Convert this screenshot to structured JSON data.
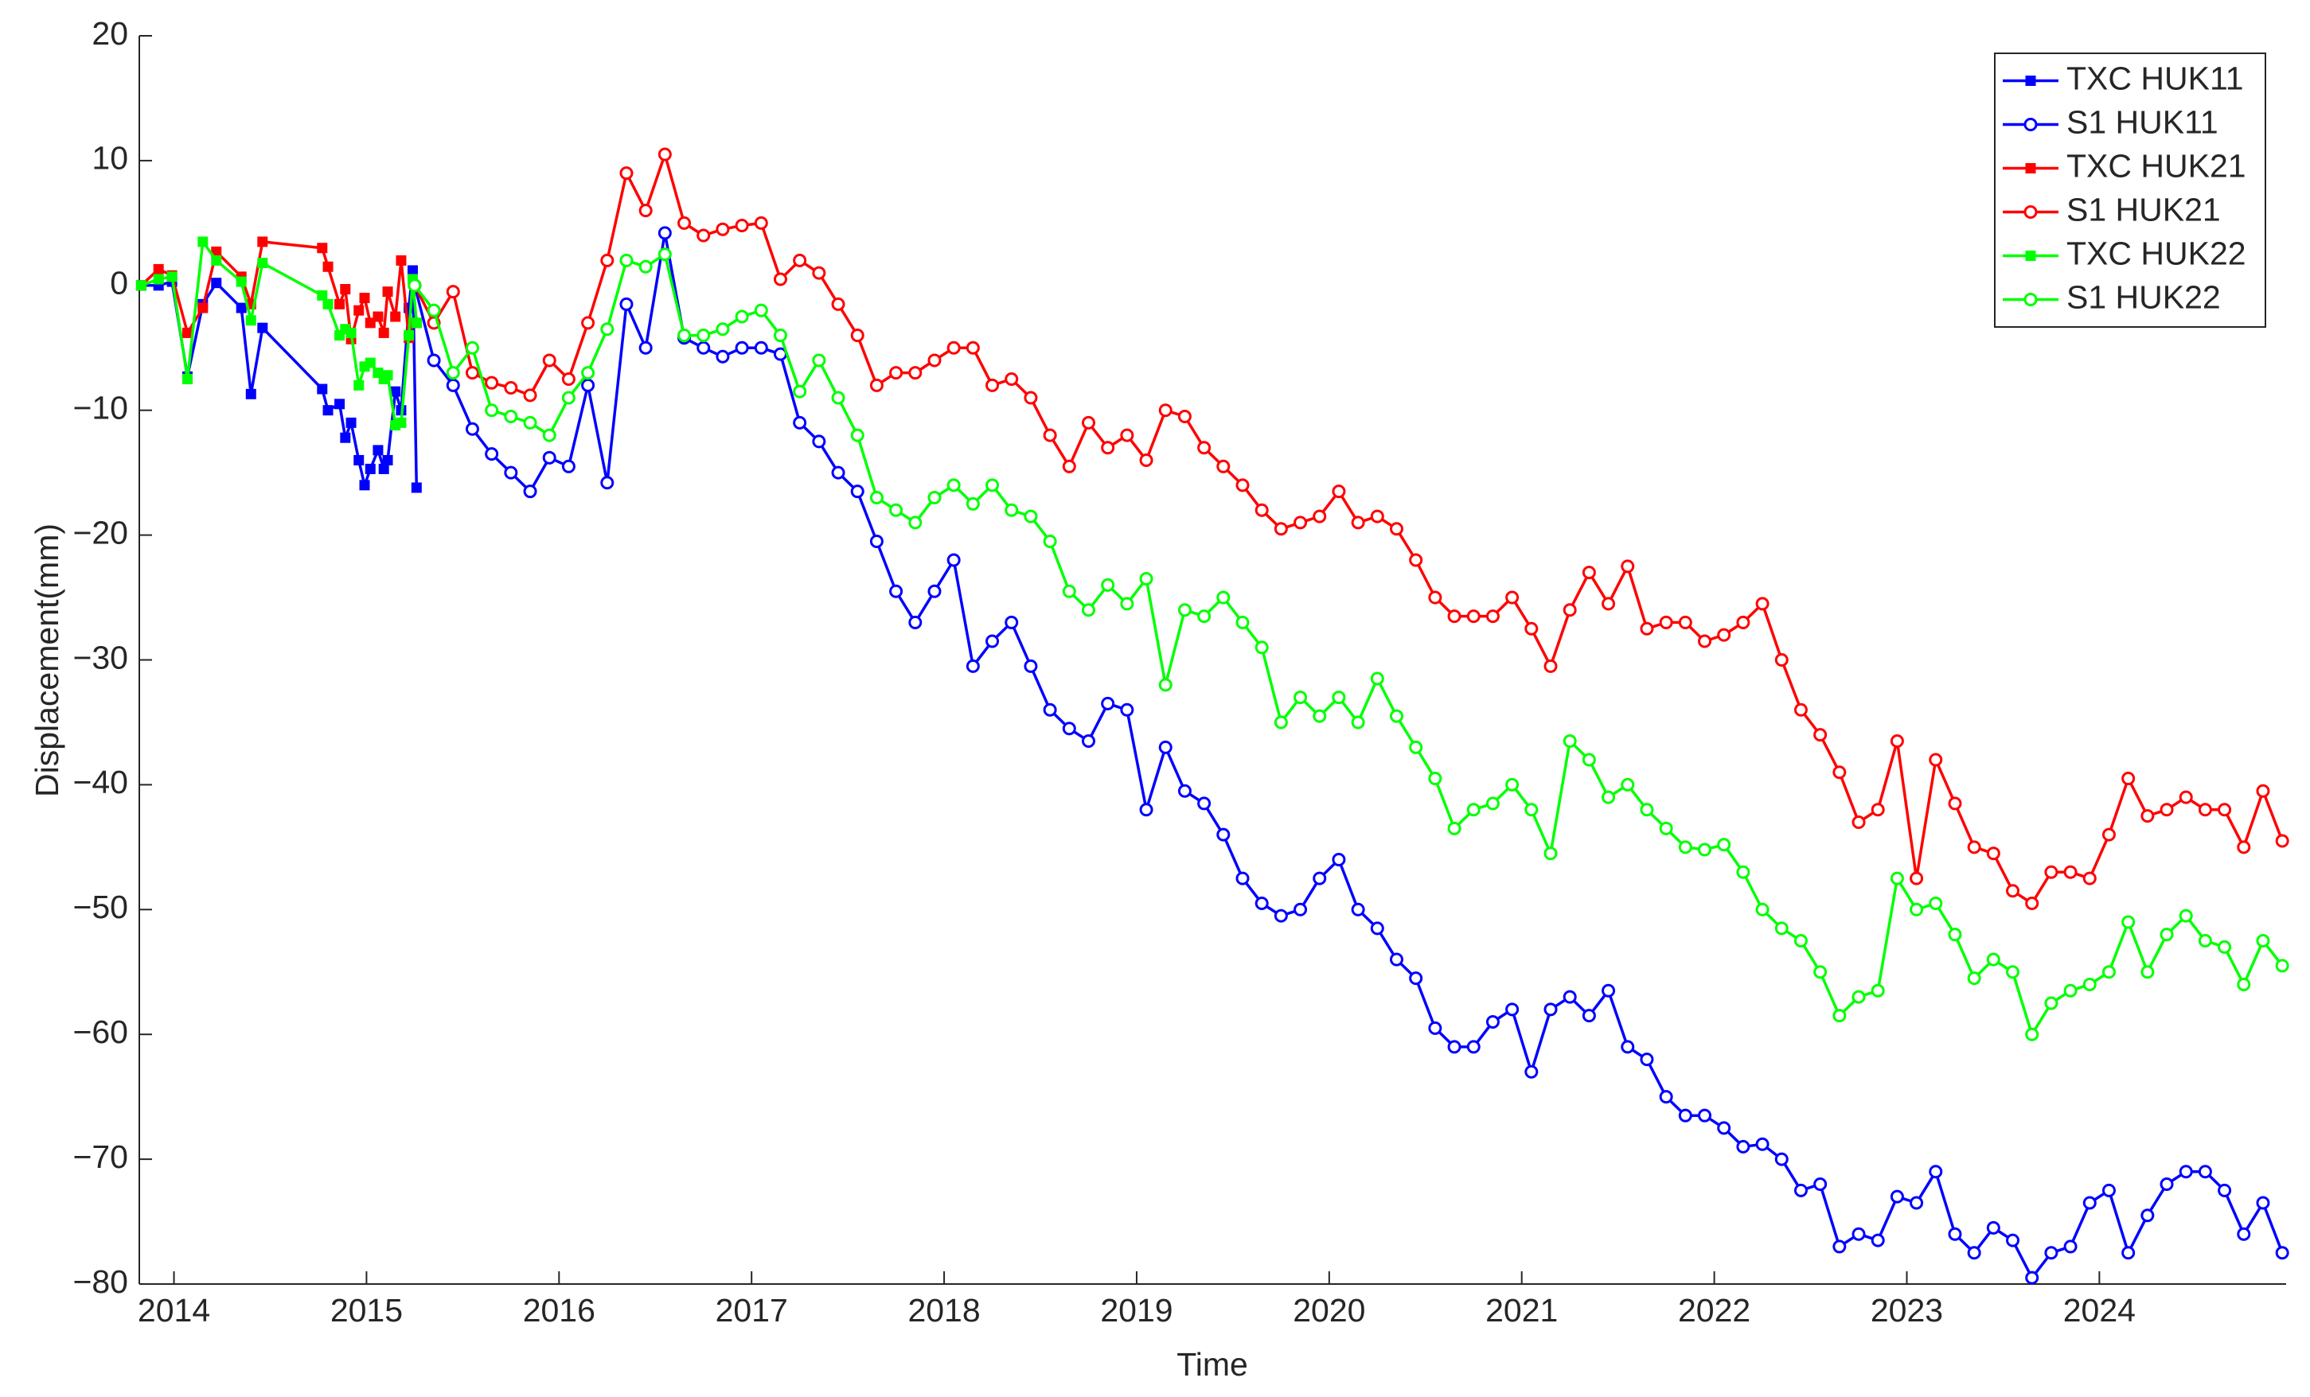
{
  "chart_data": {
    "type": "line",
    "x_label": "Time",
    "y_label": "Displacement(mm)",
    "xlim": [
      2013.82,
      2024.97
    ],
    "xticks": [
      2014,
      2015,
      2016,
      2017,
      2018,
      2019,
      2020,
      2021,
      2022,
      2023,
      2024
    ],
    "ylim": [
      -80,
      20
    ],
    "yticks": [
      {
        "value": -80,
        "label": "−80"
      },
      {
        "value": -70,
        "label": "−70"
      },
      {
        "value": -60,
        "label": "−60"
      },
      {
        "value": -50,
        "label": "−50"
      },
      {
        "value": -40,
        "label": "−40"
      },
      {
        "value": -30,
        "label": "−30"
      },
      {
        "value": -20,
        "label": "−20"
      },
      {
        "value": -10,
        "label": "−10"
      },
      0,
      10,
      20
    ],
    "legend": "upper right",
    "series": [
      {
        "name": "TXC HUK11",
        "color": "#0000ff",
        "marker": "square",
        "x": [
          2013.83,
          2013.92,
          2013.99,
          2014.07,
          2014.15,
          2014.22,
          2014.35,
          2014.4,
          2014.46,
          2014.77,
          2014.8,
          2014.86,
          2014.89,
          2014.92,
          2014.96,
          2014.99,
          2015.02,
          2015.06,
          2015.09,
          2015.11,
          2015.15,
          2015.18,
          2015.22,
          2015.24,
          2015.26
        ],
        "values": [
          0,
          0,
          0.3,
          -7.3,
          -1.5,
          0.2,
          -1.8,
          -8.7,
          -3.4,
          -8.3,
          -10,
          -9.5,
          -12.2,
          -11,
          -14,
          -16,
          -14.7,
          -13.2,
          -14.7,
          -14,
          -8.5,
          -10,
          -1.8,
          1.2,
          -16.2
        ]
      },
      {
        "name": "S1 HUK11",
        "color": "#0000ff",
        "marker": "circle",
        "x": [
          2015.25,
          2015.35,
          2015.45,
          2015.55,
          2015.65,
          2015.75,
          2015.85,
          2015.95,
          2016.05,
          2016.15,
          2016.25,
          2016.35,
          2016.45,
          2016.55,
          2016.65,
          2016.75,
          2016.85,
          2016.95,
          2017.05,
          2017.15,
          2017.25,
          2017.35,
          2017.45,
          2017.55,
          2017.65,
          2017.75,
          2017.85,
          2017.95,
          2018.05,
          2018.15,
          2018.25,
          2018.35,
          2018.45,
          2018.55,
          2018.65,
          2018.75,
          2018.85,
          2018.95,
          2019.05,
          2019.15,
          2019.25,
          2019.35,
          2019.45,
          2019.55,
          2019.65,
          2019.75,
          2019.85,
          2019.95,
          2020.05,
          2020.15,
          2020.25,
          2020.35,
          2020.45,
          2020.55,
          2020.65,
          2020.75,
          2020.85,
          2020.95,
          2021.05,
          2021.15,
          2021.25,
          2021.35,
          2021.45,
          2021.55,
          2021.65,
          2021.75,
          2021.85,
          2021.95,
          2022.05,
          2022.15,
          2022.25,
          2022.35,
          2022.45,
          2022.55,
          2022.65,
          2022.75,
          2022.85,
          2022.95,
          2023.05,
          2023.15,
          2023.25,
          2023.35,
          2023.45,
          2023.55,
          2023.65,
          2023.75,
          2023.85,
          2023.95,
          2024.05,
          2024.15,
          2024.25,
          2024.35,
          2024.45,
          2024.55,
          2024.65,
          2024.75,
          2024.85,
          2024.95
        ],
        "values": [
          0,
          -6,
          -8,
          -11.5,
          -13.5,
          -15,
          -16.5,
          -13.8,
          -14.5,
          -8,
          -15.8,
          -1.5,
          -5,
          4.2,
          -4.2,
          -5,
          -5.7,
          -5,
          -5,
          -5.5,
          -11,
          -12.5,
          -15,
          -16.5,
          -20.5,
          -24.5,
          -27,
          -24.5,
          -22,
          -30.5,
          -28.5,
          -27,
          -30.5,
          -34,
          -35.5,
          -36.5,
          -33.5,
          -34,
          -42,
          -37,
          -40.5,
          -41.5,
          -44,
          -47.5,
          -49.5,
          -50.5,
          -50,
          -47.5,
          -46,
          -50,
          -51.5,
          -54,
          -55.5,
          -59.5,
          -61,
          -61,
          -59,
          -58,
          -63,
          -58,
          -57,
          -58.5,
          -56.5,
          -61,
          -62,
          -65,
          -66.5,
          -66.5,
          -67.5,
          -69,
          -68.8,
          -70,
          -72.5,
          -72,
          -77,
          -76,
          -76.5,
          -73,
          -73.5,
          -71,
          -76,
          -77.5,
          -75.5,
          -76.5,
          -79.5,
          -77.5,
          -77,
          -73.5,
          -72.5,
          -77.5,
          -74.5,
          -72,
          -71,
          -71,
          -72.5,
          -76,
          -73.5,
          -77.5
        ]
      },
      {
        "name": "TXC HUK21",
        "color": "#ff0000",
        "marker": "square",
        "x": [
          2013.83,
          2013.92,
          2013.99,
          2014.07,
          2014.15,
          2014.22,
          2014.35,
          2014.4,
          2014.46,
          2014.77,
          2014.8,
          2014.86,
          2014.89,
          2014.92,
          2014.96,
          2014.99,
          2015.02,
          2015.06,
          2015.09,
          2015.11,
          2015.15,
          2015.18,
          2015.22,
          2015.24,
          2015.26
        ],
        "values": [
          0,
          1.3,
          0.8,
          -3.8,
          -1.8,
          2.7,
          0.7,
          -1.5,
          3.5,
          3,
          1.5,
          -1.5,
          -0.3,
          -4.3,
          -2,
          -1,
          -3,
          -2.5,
          -3.8,
          -0.5,
          -2.5,
          2,
          -4.2,
          -3,
          -3
        ]
      },
      {
        "name": "S1 HUK21",
        "color": "#ff0000",
        "marker": "circle",
        "x": [
          2015.25,
          2015.35,
          2015.45,
          2015.55,
          2015.65,
          2015.75,
          2015.85,
          2015.95,
          2016.05,
          2016.15,
          2016.25,
          2016.35,
          2016.45,
          2016.55,
          2016.65,
          2016.75,
          2016.85,
          2016.95,
          2017.05,
          2017.15,
          2017.25,
          2017.35,
          2017.45,
          2017.55,
          2017.65,
          2017.75,
          2017.85,
          2017.95,
          2018.05,
          2018.15,
          2018.25,
          2018.35,
          2018.45,
          2018.55,
          2018.65,
          2018.75,
          2018.85,
          2018.95,
          2019.05,
          2019.15,
          2019.25,
          2019.35,
          2019.45,
          2019.55,
          2019.65,
          2019.75,
          2019.85,
          2019.95,
          2020.05,
          2020.15,
          2020.25,
          2020.35,
          2020.45,
          2020.55,
          2020.65,
          2020.75,
          2020.85,
          2020.95,
          2021.05,
          2021.15,
          2021.25,
          2021.35,
          2021.45,
          2021.55,
          2021.65,
          2021.75,
          2021.85,
          2021.95,
          2022.05,
          2022.15,
          2022.25,
          2022.35,
          2022.45,
          2022.55,
          2022.65,
          2022.75,
          2022.85,
          2022.95,
          2023.05,
          2023.15,
          2023.25,
          2023.35,
          2023.45,
          2023.55,
          2023.65,
          2023.75,
          2023.85,
          2023.95,
          2024.05,
          2024.15,
          2024.25,
          2024.35,
          2024.45,
          2024.55,
          2024.65,
          2024.75,
          2024.85,
          2024.95
        ],
        "values": [
          0,
          -3,
          -0.5,
          -7,
          -7.8,
          -8.2,
          -8.8,
          -6,
          -7.5,
          -3,
          2,
          9,
          6,
          10.5,
          5,
          4,
          4.5,
          4.8,
          5,
          0.5,
          2,
          1,
          -1.5,
          -4,
          -8,
          -7,
          -7,
          -6,
          -5,
          -5,
          -8,
          -7.5,
          -9,
          -12,
          -14.5,
          -11,
          -13,
          -12,
          -14,
          -10,
          -10.5,
          -13,
          -14.5,
          -16,
          -18,
          -19.5,
          -19,
          -18.5,
          -16.5,
          -19,
          -18.5,
          -19.5,
          -22,
          -25,
          -26.5,
          -26.5,
          -26.5,
          -25,
          -27.5,
          -30.5,
          -26,
          -23,
          -25.5,
          -22.5,
          -27.5,
          -27,
          -27,
          -28.5,
          -28,
          -27,
          -25.5,
          -30,
          -34,
          -36,
          -39,
          -43,
          -42,
          -36.5,
          -47.5,
          -38,
          -41.5,
          -45,
          -45.5,
          -48.5,
          -49.5,
          -47,
          -47,
          -47.5,
          -44,
          -39.5,
          -42.5,
          -42,
          -41,
          -42,
          -42,
          -45,
          -40.5,
          -44.5
        ]
      },
      {
        "name": "TXC HUK22",
        "color": "#00ff00",
        "marker": "square",
        "x": [
          2013.83,
          2013.92,
          2013.99,
          2014.07,
          2014.15,
          2014.22,
          2014.35,
          2014.4,
          2014.46,
          2014.77,
          2014.8,
          2014.86,
          2014.89,
          2014.92,
          2014.96,
          2014.99,
          2015.02,
          2015.06,
          2015.09,
          2015.11,
          2015.15,
          2015.18,
          2015.22,
          2015.24,
          2015.26
        ],
        "values": [
          0,
          0.5,
          0.7,
          -7.5,
          3.5,
          2,
          0.3,
          -2.8,
          1.8,
          -0.8,
          -1.5,
          -4,
          -3.5,
          -3.8,
          -8,
          -6.5,
          -6.2,
          -7,
          -7.5,
          -7.2,
          -11.2,
          -11,
          -4,
          0.5,
          -3
        ]
      },
      {
        "name": "S1 HUK22",
        "color": "#00ff00",
        "marker": "circle",
        "x": [
          2015.25,
          2015.35,
          2015.45,
          2015.55,
          2015.65,
          2015.75,
          2015.85,
          2015.95,
          2016.05,
          2016.15,
          2016.25,
          2016.35,
          2016.45,
          2016.55,
          2016.65,
          2016.75,
          2016.85,
          2016.95,
          2017.05,
          2017.15,
          2017.25,
          2017.35,
          2017.45,
          2017.55,
          2017.65,
          2017.75,
          2017.85,
          2017.95,
          2018.05,
          2018.15,
          2018.25,
          2018.35,
          2018.45,
          2018.55,
          2018.65,
          2018.75,
          2018.85,
          2018.95,
          2019.05,
          2019.15,
          2019.25,
          2019.35,
          2019.45,
          2019.55,
          2019.65,
          2019.75,
          2019.85,
          2019.95,
          2020.05,
          2020.15,
          2020.25,
          2020.35,
          2020.45,
          2020.55,
          2020.65,
          2020.75,
          2020.85,
          2020.95,
          2021.05,
          2021.15,
          2021.25,
          2021.35,
          2021.45,
          2021.55,
          2021.65,
          2021.75,
          2021.85,
          2021.95,
          2022.05,
          2022.15,
          2022.25,
          2022.35,
          2022.45,
          2022.55,
          2022.65,
          2022.75,
          2022.85,
          2022.95,
          2023.05,
          2023.15,
          2023.25,
          2023.35,
          2023.45,
          2023.55,
          2023.65,
          2023.75,
          2023.85,
          2023.95,
          2024.05,
          2024.15,
          2024.25,
          2024.35,
          2024.45,
          2024.55,
          2024.65,
          2024.75,
          2024.85,
          2024.95
        ],
        "values": [
          0,
          -2,
          -7,
          -5,
          -10,
          -10.5,
          -11,
          -12,
          -9,
          -7,
          -3.5,
          2,
          1.5,
          2.5,
          -4,
          -4,
          -3.5,
          -2.5,
          -2,
          -4,
          -8.5,
          -6,
          -9,
          -12,
          -17,
          -18,
          -19,
          -17,
          -16,
          -17.5,
          -16,
          -18,
          -18.5,
          -20.5,
          -24.5,
          -26,
          -24,
          -25.5,
          -23.5,
          -32,
          -26,
          -26.5,
          -25,
          -27,
          -29,
          -35,
          -33,
          -34.5,
          -33,
          -35,
          -31.5,
          -34.5,
          -37,
          -39.5,
          -43.5,
          -42,
          -41.5,
          -40,
          -42,
          -45.5,
          -36.5,
          -38,
          -41,
          -40,
          -42,
          -43.5,
          -45,
          -45.2,
          -44.8,
          -47,
          -50,
          -51.5,
          -52.5,
          -55,
          -58.5,
          -57,
          -56.5,
          -47.5,
          -50,
          -49.5,
          -52,
          -55.5,
          -54,
          -55,
          -60,
          -57.5,
          -56.5,
          -56,
          -55,
          -51,
          -55,
          -52,
          -50.5,
          -52.5,
          -53,
          -56,
          -52.5,
          -54.5
        ]
      }
    ]
  }
}
